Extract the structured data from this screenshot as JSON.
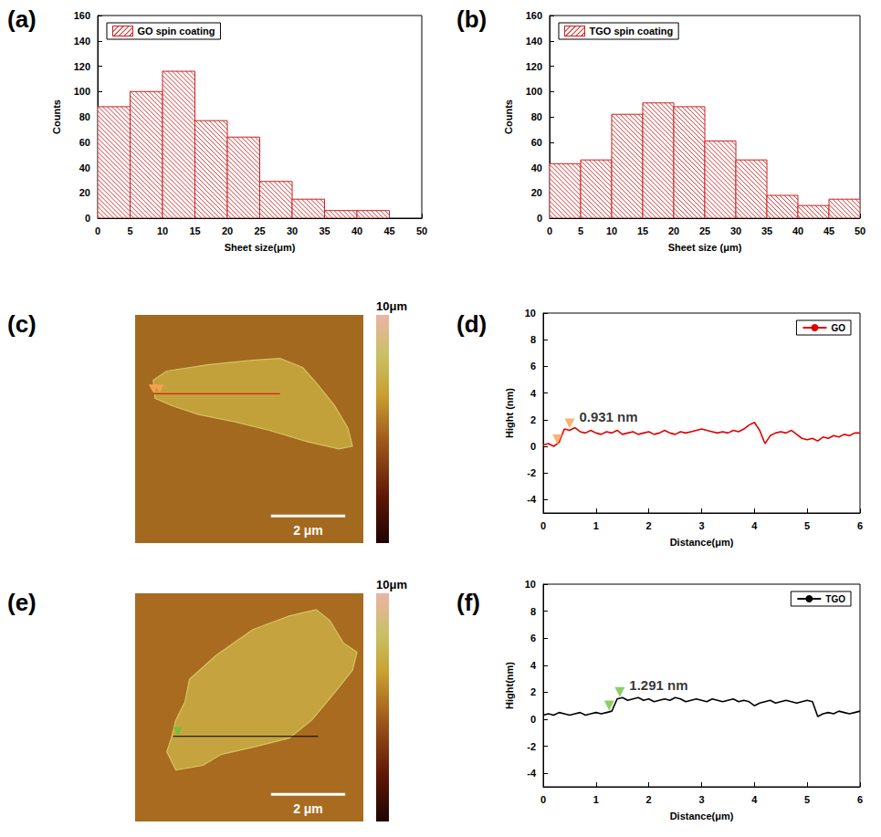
{
  "chart_data": [
    {
      "panel": "(a)",
      "type": "histogram",
      "bins": [
        0,
        5,
        10,
        15,
        20,
        25,
        30,
        35,
        40,
        45
      ],
      "series": [
        {
          "name": "GO spin coating",
          "color": "#cc2020",
          "values": [
            88,
            100,
            116,
            77,
            64,
            29,
            15,
            6,
            6
          ]
        }
      ],
      "xlabel": "Sheet size(μm)",
      "ylabel": "Counts",
      "xlim": [
        0,
        50
      ],
      "xticks": [
        0,
        5,
        10,
        15,
        20,
        25,
        30,
        35,
        40,
        45,
        50
      ],
      "ylim": [
        0,
        160
      ],
      "yticks": [
        0,
        20,
        40,
        60,
        80,
        100,
        120,
        140,
        160
      ],
      "grid": false,
      "legend": "upper left"
    },
    {
      "panel": "(b)",
      "type": "histogram",
      "bins": [
        0,
        5,
        10,
        15,
        20,
        25,
        30,
        35,
        40,
        45,
        50
      ],
      "series": [
        {
          "name": "TGO spin coating",
          "color": "#cc2020",
          "values": [
            43,
            46,
            82,
            91,
            88,
            61,
            46,
            18,
            10,
            15
          ]
        }
      ],
      "xlabel": "Sheet size (μm)",
      "ylabel": "Counts",
      "xlim": [
        0,
        50
      ],
      "xticks": [
        0,
        5,
        10,
        15,
        20,
        25,
        30,
        35,
        40,
        45,
        50
      ],
      "ylim": [
        0,
        160
      ],
      "yticks": [
        0,
        20,
        40,
        60,
        80,
        100,
        120,
        140,
        160
      ],
      "grid": false,
      "legend": "upper left"
    },
    {
      "panel": "(c)",
      "type": "image",
      "colorbar_label": "10μm",
      "scale_bar": "2 μm"
    },
    {
      "panel": "(d)",
      "type": "line",
      "x": [
        0,
        0.1,
        0.2,
        0.3,
        0.4,
        0.5,
        0.6,
        0.7,
        0.8,
        0.9,
        1,
        1.1,
        1.2,
        1.3,
        1.4,
        1.5,
        1.6,
        1.7,
        1.8,
        1.9,
        2,
        2.1,
        2.2,
        2.3,
        2.4,
        2.5,
        2.6,
        2.7,
        2.8,
        2.9,
        3,
        3.1,
        3.2,
        3.3,
        3.4,
        3.5,
        3.6,
        3.7,
        3.8,
        3.9,
        4,
        4.1,
        4.2,
        4.3,
        4.4,
        4.5,
        4.6,
        4.7,
        4.8,
        4.9,
        5,
        5.1,
        5.2,
        5.3,
        5.4,
        5.5,
        5.6,
        5.7,
        5.8,
        5.9,
        6
      ],
      "series": [
        {
          "name": "GO",
          "color": "#e00000",
          "values": [
            0.1,
            0.2,
            0.0,
            0.3,
            1.3,
            1.2,
            1.4,
            1.1,
            1.0,
            1.2,
            1.0,
            0.9,
            1.1,
            1.0,
            1.2,
            0.9,
            1.0,
            1.1,
            0.9,
            1.0,
            1.1,
            0.9,
            1.0,
            1.2,
            1.0,
            0.9,
            1.1,
            1.0,
            1.1,
            1.2,
            1.3,
            1.2,
            1.1,
            1.0,
            1.1,
            1.0,
            1.2,
            1.1,
            1.3,
            1.6,
            1.8,
            1.2,
            0.2,
            0.8,
            1.0,
            1.1,
            1.0,
            1.2,
            0.9,
            0.6,
            0.5,
            0.6,
            0.4,
            0.7,
            0.6,
            0.8,
            0.7,
            0.9,
            0.8,
            1.0,
            1.0
          ]
        }
      ],
      "xlabel": "Distance(μm)",
      "ylabel": "Hight (nm)",
      "xlim": [
        0,
        6
      ],
      "xticks": [
        0,
        1,
        2,
        3,
        4,
        5,
        6
      ],
      "ylim": [
        -5,
        10
      ],
      "yticks": [
        -4,
        -2,
        0,
        2,
        4,
        6,
        8,
        10
      ],
      "grid": false,
      "legend": "upper right",
      "annotations": [
        {
          "text": "0.931 nm",
          "color": "#f5a050",
          "markers": [
            [
              0.27,
              0.1
            ],
            [
              0.5,
              1.3
            ]
          ]
        }
      ]
    },
    {
      "panel": "(e)",
      "type": "image",
      "colorbar_label": "10μm",
      "scale_bar": "2 μm"
    },
    {
      "panel": "(f)",
      "type": "line",
      "x": [
        0,
        0.1,
        0.2,
        0.3,
        0.4,
        0.5,
        0.6,
        0.7,
        0.8,
        0.9,
        1,
        1.1,
        1.2,
        1.3,
        1.4,
        1.5,
        1.6,
        1.7,
        1.8,
        1.9,
        2,
        2.1,
        2.2,
        2.3,
        2.4,
        2.5,
        2.6,
        2.7,
        2.8,
        2.9,
        3,
        3.1,
        3.2,
        3.3,
        3.4,
        3.5,
        3.6,
        3.7,
        3.8,
        3.9,
        4,
        4.1,
        4.2,
        4.3,
        4.4,
        4.5,
        4.6,
        4.7,
        4.8,
        4.9,
        5,
        5.1,
        5.2,
        5.3,
        5.4,
        5.5,
        5.6,
        5.7,
        5.8,
        5.9,
        6
      ],
      "series": [
        {
          "name": "TGO",
          "color": "#000000",
          "values": [
            0.3,
            0.4,
            0.3,
            0.5,
            0.4,
            0.3,
            0.4,
            0.5,
            0.3,
            0.4,
            0.5,
            0.4,
            0.5,
            0.6,
            1.5,
            1.6,
            1.4,
            1.5,
            1.6,
            1.4,
            1.5,
            1.3,
            1.4,
            1.5,
            1.4,
            1.6,
            1.5,
            1.3,
            1.4,
            1.5,
            1.4,
            1.3,
            1.5,
            1.4,
            1.3,
            1.4,
            1.5,
            1.3,
            1.4,
            1.3,
            1.0,
            1.2,
            1.3,
            1.4,
            1.2,
            1.3,
            1.4,
            1.3,
            1.2,
            1.3,
            1.4,
            1.3,
            0.2,
            0.4,
            0.5,
            0.4,
            0.6,
            0.5,
            0.4,
            0.5,
            0.6
          ]
        }
      ],
      "xlabel": "Distance(μm)",
      "ylabel": "Hight(nm)",
      "xlim": [
        0,
        6
      ],
      "xticks": [
        0,
        1,
        2,
        3,
        4,
        5,
        6
      ],
      "ylim": [
        -5,
        10
      ],
      "yticks": [
        -4,
        -2,
        0,
        2,
        4,
        6,
        8,
        10
      ],
      "grid": false,
      "legend": "upper right",
      "annotations": [
        {
          "text": "1.291 nm",
          "color": "#70c040",
          "markers": [
            [
              1.25,
              0.6
            ],
            [
              1.45,
              1.6
            ]
          ]
        }
      ]
    }
  ]
}
